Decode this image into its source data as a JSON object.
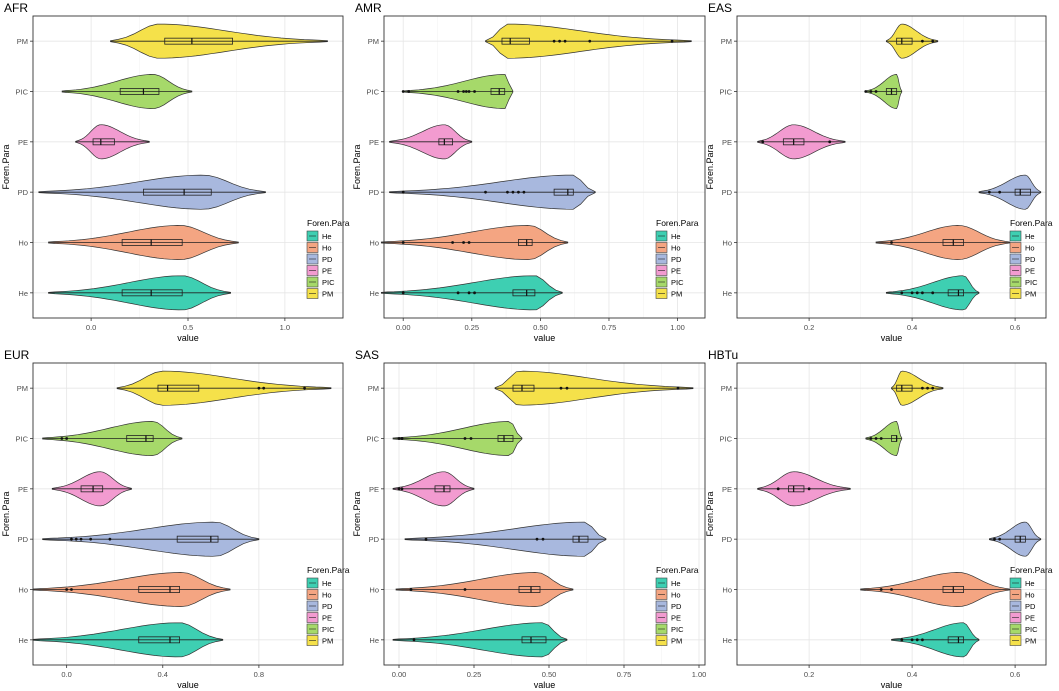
{
  "figure": {
    "legend_title": "Foren.Para",
    "y_axis_label": "Foren.Para",
    "x_axis_label": "value",
    "categories": [
      "PM",
      "PIC",
      "PE",
      "PD",
      "Ho",
      "He"
    ],
    "legend_labels": [
      "He",
      "Ho",
      "PD",
      "PE",
      "PIC",
      "PM"
    ],
    "colors": {
      "He": "#3ecfb2",
      "Ho": "#f4a582",
      "PD": "#a8b8de",
      "PE": "#f29bd0",
      "PIC": "#a6d96a",
      "PM": "#f5e14a"
    }
  },
  "chart_data": [
    {
      "type": "violin",
      "title": "AFR",
      "xlabel": "value",
      "ylabel": "Foren.Para",
      "xlim": [
        -0.3,
        1.3
      ],
      "xticks": [
        0.0,
        0.5,
        1.0
      ],
      "xtick_labels": [
        "0.0",
        "0.5",
        "1.0"
      ],
      "series": [
        {
          "name": "PM",
          "min": 0.1,
          "q1": 0.38,
          "median": 0.52,
          "q3": 0.73,
          "max": 1.22,
          "peak": 0.35,
          "outliers": []
        },
        {
          "name": "PIC",
          "min": -0.15,
          "q1": 0.15,
          "median": 0.27,
          "q3": 0.35,
          "max": 0.52,
          "peak": 0.32,
          "outliers": []
        },
        {
          "name": "PE",
          "min": -0.08,
          "q1": 0.01,
          "median": 0.05,
          "q3": 0.12,
          "max": 0.3,
          "peak": 0.05,
          "outliers": []
        },
        {
          "name": "PD",
          "min": -0.27,
          "q1": 0.27,
          "median": 0.48,
          "q3": 0.62,
          "max": 0.9,
          "peak": 0.58,
          "outliers": []
        },
        {
          "name": "Ho",
          "min": -0.22,
          "q1": 0.16,
          "median": 0.31,
          "q3": 0.47,
          "max": 0.76,
          "peak": 0.46,
          "outliers": []
        },
        {
          "name": "He",
          "min": -0.22,
          "q1": 0.16,
          "median": 0.31,
          "q3": 0.47,
          "max": 0.72,
          "peak": 0.47,
          "outliers": []
        }
      ]
    },
    {
      "type": "violin",
      "title": "AMR",
      "xlabel": "value",
      "ylabel": "Foren.Para",
      "xlim": [
        -0.07,
        1.1
      ],
      "xticks": [
        0.0,
        0.25,
        0.5,
        0.75,
        1.0
      ],
      "xtick_labels": [
        "0.00",
        "0.25",
        "0.50",
        "0.75",
        "1.00"
      ],
      "series": [
        {
          "name": "PM",
          "min": 0.3,
          "q1": 0.36,
          "median": 0.39,
          "q3": 0.46,
          "max": 1.05,
          "peak": 0.38,
          "outliers": [
            0.55,
            0.57,
            0.59,
            0.68,
            0.98
          ]
        },
        {
          "name": "PIC",
          "min": 0.0,
          "q1": 0.32,
          "median": 0.35,
          "q3": 0.37,
          "max": 0.4,
          "peak": 0.37,
          "outliers": [
            0.0,
            0.02,
            0.2,
            0.22,
            0.23,
            0.24,
            0.26
          ]
        },
        {
          "name": "PE",
          "min": -0.05,
          "q1": 0.13,
          "median": 0.15,
          "q3": 0.18,
          "max": 0.25,
          "peak": 0.15,
          "outliers": []
        },
        {
          "name": "PD",
          "min": -0.05,
          "q1": 0.55,
          "median": 0.6,
          "q3": 0.62,
          "max": 0.7,
          "peak": 0.62,
          "outliers": [
            0.0,
            0.3,
            0.38,
            0.4,
            0.42,
            0.44
          ]
        },
        {
          "name": "Ho",
          "min": -0.08,
          "q1": 0.42,
          "median": 0.45,
          "q3": 0.47,
          "max": 0.6,
          "peak": 0.46,
          "outliers": [
            0.0,
            0.18,
            0.22,
            0.24
          ]
        },
        {
          "name": "He",
          "min": -0.08,
          "q1": 0.4,
          "median": 0.45,
          "q3": 0.48,
          "max": 0.58,
          "peak": 0.48,
          "outliers": [
            0.0,
            0.2,
            0.24,
            0.26
          ]
        }
      ]
    },
    {
      "type": "violin",
      "title": "EAS",
      "xlabel": "value",
      "ylabel": "Foren.Para",
      "xlim": [
        0.06,
        0.66
      ],
      "xticks": [
        0.2,
        0.4,
        0.6
      ],
      "xtick_labels": [
        "0.2",
        "0.4",
        "0.6"
      ],
      "series": [
        {
          "name": "PM",
          "min": 0.35,
          "q1": 0.37,
          "median": 0.38,
          "q3": 0.4,
          "max": 0.45,
          "peak": 0.38,
          "outliers": [
            0.42,
            0.44
          ]
        },
        {
          "name": "PIC",
          "min": 0.31,
          "q1": 0.35,
          "median": 0.36,
          "q3": 0.37,
          "max": 0.38,
          "peak": 0.37,
          "outliers": [
            0.31,
            0.32,
            0.33
          ]
        },
        {
          "name": "PE",
          "min": 0.1,
          "q1": 0.15,
          "median": 0.17,
          "q3": 0.19,
          "max": 0.27,
          "peak": 0.17,
          "outliers": [
            0.11,
            0.24
          ]
        },
        {
          "name": "PD",
          "min": 0.53,
          "q1": 0.6,
          "median": 0.61,
          "q3": 0.63,
          "max": 0.65,
          "peak": 0.62,
          "outliers": [
            0.55,
            0.57
          ]
        },
        {
          "name": "Ho",
          "min": 0.33,
          "q1": 0.46,
          "median": 0.48,
          "q3": 0.5,
          "max": 0.59,
          "peak": 0.49,
          "outliers": [
            0.36
          ]
        },
        {
          "name": "He",
          "min": 0.35,
          "q1": 0.47,
          "median": 0.49,
          "q3": 0.5,
          "max": 0.53,
          "peak": 0.5,
          "outliers": [
            0.38,
            0.4,
            0.41,
            0.42,
            0.44
          ]
        }
      ]
    },
    {
      "type": "violin",
      "title": "EUR",
      "xlabel": "value",
      "ylabel": "Foren.Para",
      "xlim": [
        -0.14,
        1.15
      ],
      "xticks": [
        0.0,
        0.4,
        0.8
      ],
      "xtick_labels": [
        "0.0",
        "0.4",
        "0.8"
      ],
      "series": [
        {
          "name": "PM",
          "min": 0.21,
          "q1": 0.38,
          "median": 0.42,
          "q3": 0.55,
          "max": 1.1,
          "peak": 0.4,
          "outliers": [
            0.8,
            0.82,
            0.99
          ]
        },
        {
          "name": "PIC",
          "min": -0.1,
          "q1": 0.25,
          "median": 0.33,
          "q3": 0.36,
          "max": 0.48,
          "peak": 0.36,
          "outliers": [
            -0.02,
            0.0
          ]
        },
        {
          "name": "PE",
          "min": -0.06,
          "q1": 0.06,
          "median": 0.11,
          "q3": 0.15,
          "max": 0.27,
          "peak": 0.14,
          "outliers": []
        },
        {
          "name": "PD",
          "min": -0.1,
          "q1": 0.46,
          "median": 0.6,
          "q3": 0.63,
          "max": 0.8,
          "peak": 0.62,
          "outliers": [
            0.02,
            0.04,
            0.06,
            0.1,
            0.18
          ]
        },
        {
          "name": "Ho",
          "min": -0.14,
          "q1": 0.3,
          "median": 0.43,
          "q3": 0.47,
          "max": 0.68,
          "peak": 0.48,
          "outliers": [
            0.0,
            0.02
          ]
        },
        {
          "name": "He",
          "min": -0.14,
          "q1": 0.3,
          "median": 0.43,
          "q3": 0.47,
          "max": 0.65,
          "peak": 0.47,
          "outliers": []
        }
      ]
    },
    {
      "type": "violin",
      "title": "SAS",
      "xlabel": "value",
      "ylabel": "Foren.Para",
      "xlim": [
        -0.05,
        1.02
      ],
      "xticks": [
        0.0,
        0.25,
        0.5,
        0.75,
        1.0
      ],
      "xtick_labels": [
        "0.00",
        "0.25",
        "0.50",
        "0.75",
        "1.00"
      ],
      "series": [
        {
          "name": "PM",
          "min": 0.32,
          "q1": 0.38,
          "median": 0.41,
          "q3": 0.45,
          "max": 0.98,
          "peak": 0.4,
          "outliers": [
            0.54,
            0.56,
            0.93
          ]
        },
        {
          "name": "PIC",
          "min": -0.02,
          "q1": 0.33,
          "median": 0.35,
          "q3": 0.38,
          "max": 0.41,
          "peak": 0.37,
          "outliers": [
            0.0,
            0.01,
            0.22,
            0.24
          ]
        },
        {
          "name": "PE",
          "min": -0.02,
          "q1": 0.12,
          "median": 0.15,
          "q3": 0.17,
          "max": 0.25,
          "peak": 0.15,
          "outliers": [
            0.0,
            0.01
          ]
        },
        {
          "name": "PD",
          "min": 0.02,
          "q1": 0.58,
          "median": 0.6,
          "q3": 0.63,
          "max": 0.69,
          "peak": 0.62,
          "outliers": [
            0.09,
            0.46,
            0.48
          ]
        },
        {
          "name": "Ho",
          "min": -0.01,
          "q1": 0.4,
          "median": 0.44,
          "q3": 0.47,
          "max": 0.58,
          "peak": 0.46,
          "outliers": [
            0.04,
            0.22
          ]
        },
        {
          "name": "He",
          "min": -0.02,
          "q1": 0.41,
          "median": 0.44,
          "q3": 0.49,
          "max": 0.56,
          "peak": 0.48,
          "outliers": [
            0.05
          ]
        }
      ]
    },
    {
      "type": "violin",
      "title": "HBTu",
      "xlabel": "value",
      "ylabel": "Foren.Para",
      "xlim": [
        0.06,
        0.66
      ],
      "xticks": [
        0.2,
        0.4,
        0.6
      ],
      "xtick_labels": [
        "0.2",
        "0.4",
        "0.6"
      ],
      "series": [
        {
          "name": "PM",
          "min": 0.36,
          "q1": 0.37,
          "median": 0.38,
          "q3": 0.4,
          "max": 0.46,
          "peak": 0.38,
          "outliers": [
            0.42,
            0.43,
            0.44
          ]
        },
        {
          "name": "PIC",
          "min": 0.31,
          "q1": 0.36,
          "median": 0.37,
          "q3": 0.37,
          "max": 0.38,
          "peak": 0.37,
          "outliers": [
            0.32,
            0.33,
            0.34
          ]
        },
        {
          "name": "PE",
          "min": 0.1,
          "q1": 0.16,
          "median": 0.17,
          "q3": 0.19,
          "max": 0.28,
          "peak": 0.17,
          "outliers": [
            0.14,
            0.2
          ]
        },
        {
          "name": "PD",
          "min": 0.55,
          "q1": 0.6,
          "median": 0.61,
          "q3": 0.62,
          "max": 0.65,
          "peak": 0.62,
          "outliers": [
            0.56,
            0.57
          ]
        },
        {
          "name": "Ho",
          "min": 0.3,
          "q1": 0.46,
          "median": 0.48,
          "q3": 0.5,
          "max": 0.59,
          "peak": 0.49,
          "outliers": [
            0.34,
            0.36
          ]
        },
        {
          "name": "He",
          "min": 0.36,
          "q1": 0.47,
          "median": 0.49,
          "q3": 0.5,
          "max": 0.53,
          "peak": 0.5,
          "outliers": [
            0.38,
            0.4,
            0.41,
            0.42
          ]
        }
      ]
    }
  ]
}
